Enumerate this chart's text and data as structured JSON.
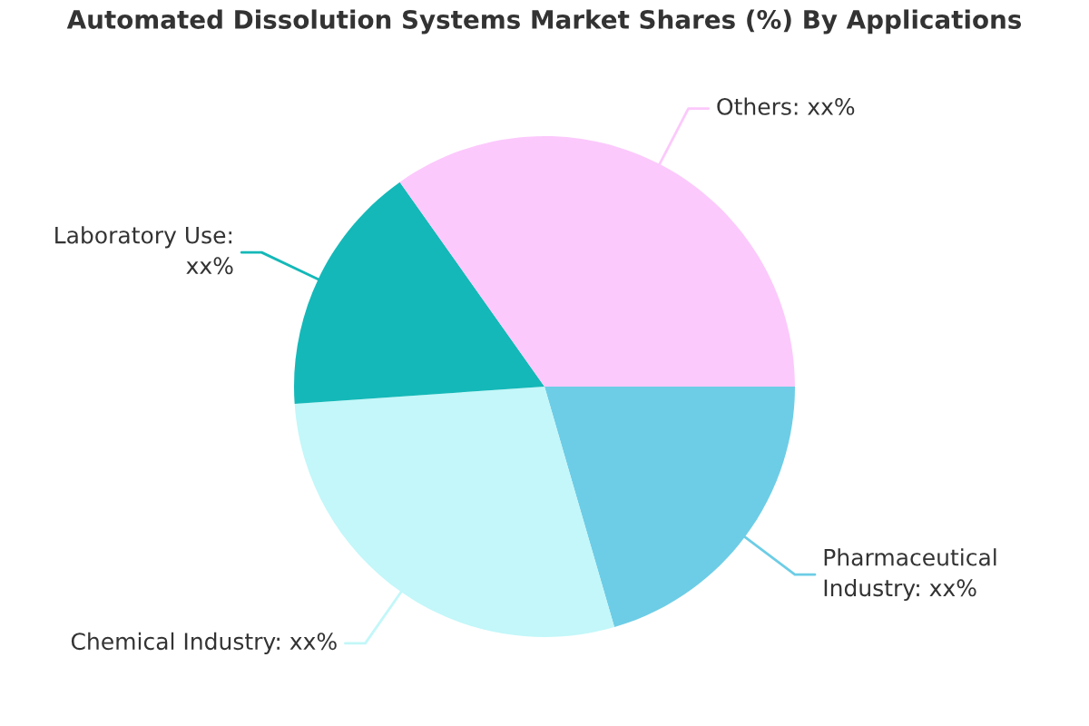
{
  "chart_data": {
    "type": "pie",
    "title": "Automated Dissolution Systems Market Shares (%) By Applications",
    "categories": [
      "Pharmaceutical\nIndustry: xx%",
      "Chemical Industry: xx%",
      "Laboratory Use:\nxx%",
      "Others: xx%"
    ],
    "values": [
      20.5,
      28.4,
      16.3,
      34.8
    ],
    "colors": [
      "#6dcde6",
      "#c3f7f9",
      "#14b8b8",
      "#fcc9fc"
    ]
  }
}
